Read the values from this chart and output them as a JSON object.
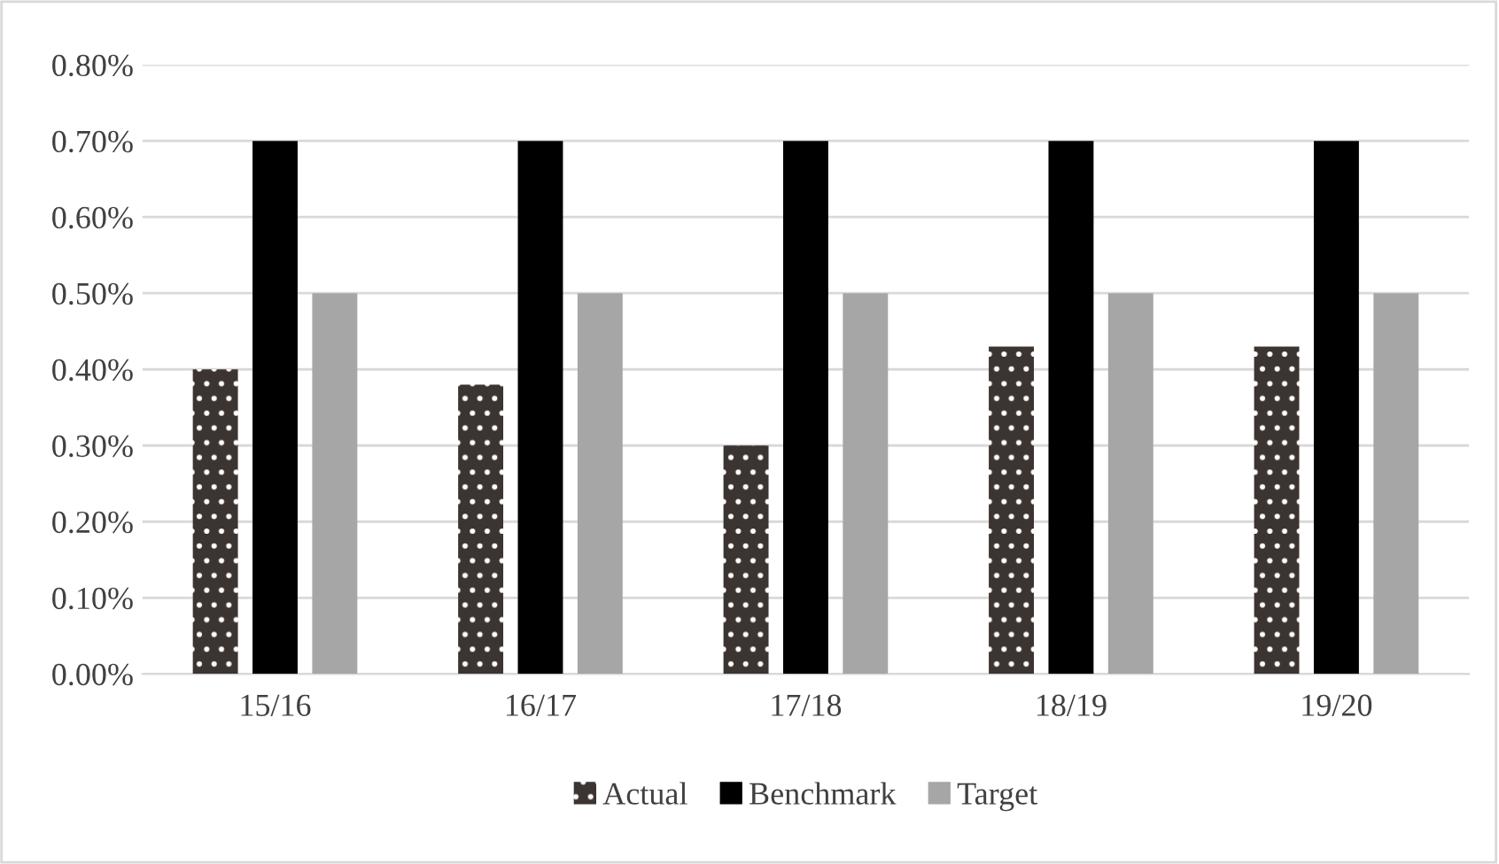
{
  "chart_data": {
    "type": "bar",
    "categories": [
      "15/16",
      "16/17",
      "17/18",
      "18/19",
      "19/20"
    ],
    "series": [
      {
        "name": "Actual",
        "color": "#3b3430",
        "values": [
          0.4,
          0.38,
          0.3,
          0.43,
          0.43
        ]
      },
      {
        "name": "Benchmark",
        "color": "#000000",
        "values": [
          0.7,
          0.7,
          0.7,
          0.7,
          0.7
        ]
      },
      {
        "name": "Target",
        "color": "#a6a6a6",
        "values": [
          0.5,
          0.5,
          0.5,
          0.5,
          0.5
        ]
      }
    ],
    "ylim": [
      0,
      0.8
    ],
    "yticks": [
      {
        "value": 0,
        "label": "0.00%"
      },
      {
        "value": 0.1,
        "label": "0.10%"
      },
      {
        "value": 0.2,
        "label": "0.20%"
      },
      {
        "value": 0.3,
        "label": "0.30%"
      },
      {
        "value": 0.4,
        "label": "0.40%"
      },
      {
        "value": 0.5,
        "label": "0.50%"
      },
      {
        "value": 0.6,
        "label": "0.60%"
      },
      {
        "value": 0.7,
        "label": "0.70%"
      },
      {
        "value": 0.8,
        "label": "0.80%"
      }
    ],
    "grid": "y",
    "legend": "bottom"
  }
}
